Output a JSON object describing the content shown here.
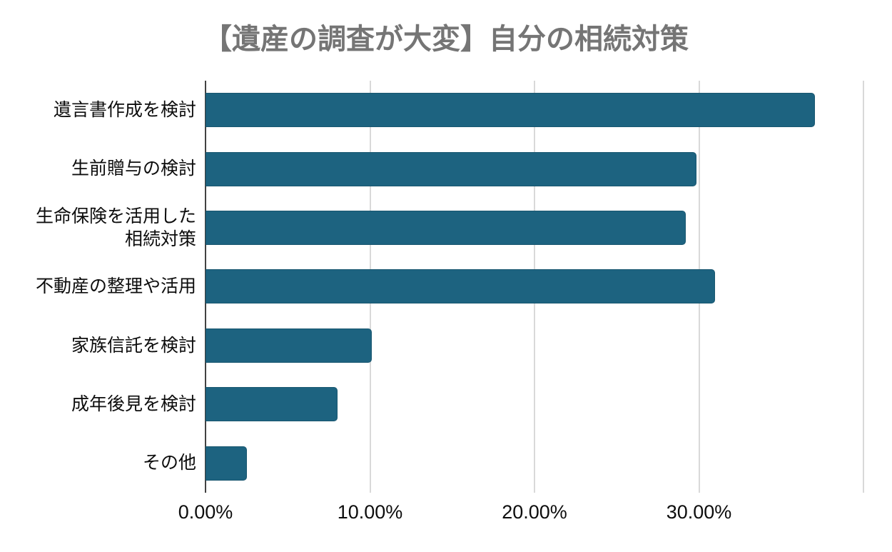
{
  "title": "【遺産の調査が大変】自分の相続対策",
  "chart_data": {
    "type": "bar",
    "orientation": "horizontal",
    "title": "【遺産の調査が大変】自分の相続対策",
    "categories": [
      "遺言書作成を検討",
      "生前贈与の検討",
      "生命保険を活用した\n相続対策",
      "不動産の整理や活用",
      "家族信託を検討",
      "成年後見を検討",
      "その他"
    ],
    "values": [
      35.5,
      28.6,
      28.0,
      29.7,
      9.7,
      7.7,
      2.4
    ],
    "unit": "%",
    "xlabel": "",
    "ylabel": "",
    "xlim": [
      0,
      40
    ],
    "x_ticks": [
      "0.00%",
      "10.00%",
      "20.00%",
      "30.00%"
    ],
    "x_tick_positions_pct": [
      0,
      25,
      50,
      75
    ],
    "grid": true,
    "legend": "none",
    "bar_color": "#1d6380",
    "gridline_color": "#d9d9d9",
    "axis_color": "#424242",
    "title_color": "#757575"
  }
}
